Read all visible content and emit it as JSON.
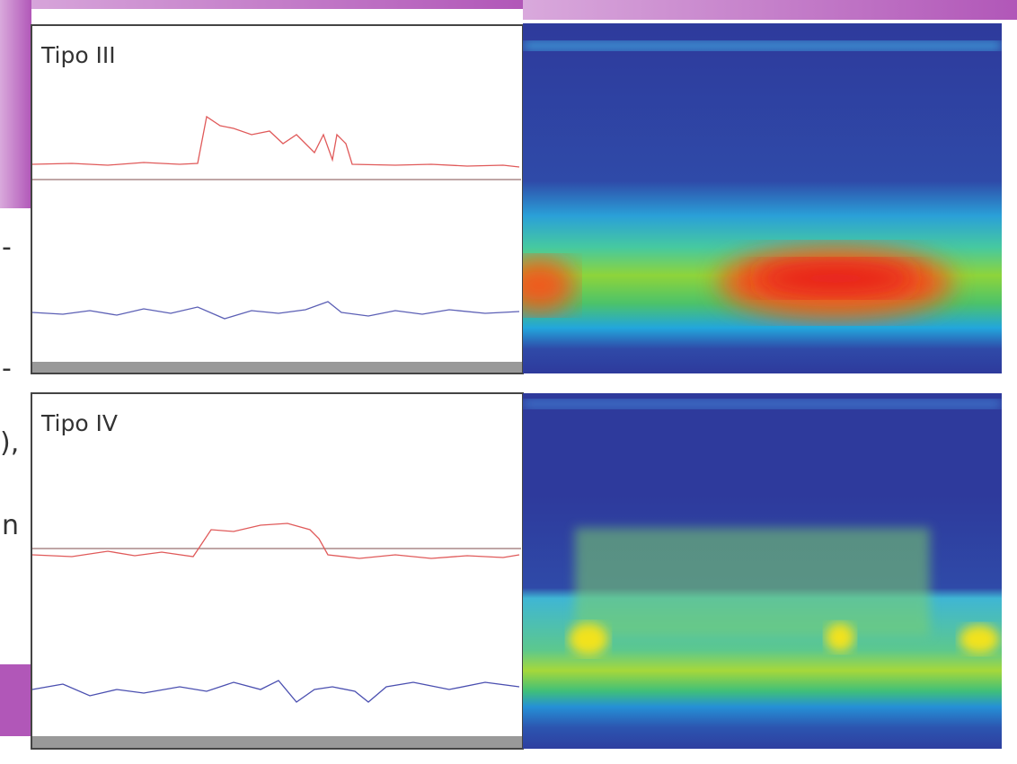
{
  "panels": [
    {
      "label": "Tipo III"
    },
    {
      "label": "Tipo IV"
    }
  ],
  "margin_fragments": [
    "-",
    "-",
    "),",
    "n"
  ]
}
